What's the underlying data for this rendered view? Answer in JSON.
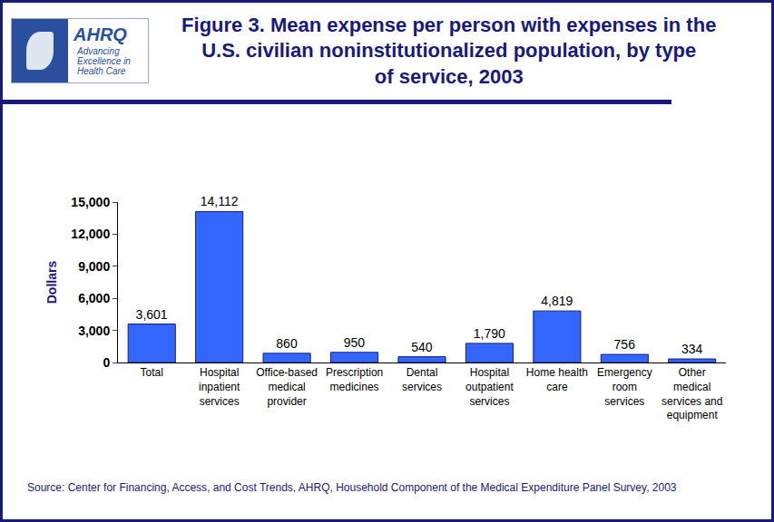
{
  "logo": {
    "name": "AHRQ",
    "tagline": "Advancing Excellence in Health Care"
  },
  "source": "Source: Center for Financing, Access, and Cost Trends, AHRQ, Household Component of the Medical Expenditure Panel Survey, 2003",
  "chart_data": {
    "type": "bar",
    "title": "Figure 3. Mean expense per person with expenses in the U.S. civilian noninstitutionalized population, by type of service, 2003",
    "y_label": "Dollars",
    "categories": [
      "Total",
      "Hospital inpatient services",
      "Office-based medical provider",
      "Prescription medicines",
      "Dental services",
      "Hospital outpatient services",
      "Home health care",
      "Emergency room services",
      "Other medical services and equipment"
    ],
    "values": [
      3601,
      14112,
      860,
      950,
      540,
      1790,
      4819,
      756,
      334
    ],
    "value_labels": [
      "3,601",
      "14,112",
      "860",
      "950",
      "540",
      "1,790",
      "4,819",
      "756",
      "334"
    ],
    "data_labels": true,
    "color": "#3366ff",
    "ylim": [
      0,
      15000
    ],
    "yticks": [
      0,
      {
        "value": 3000,
        "label": "3,000"
      },
      {
        "value": 6000,
        "label": "6,000"
      },
      {
        "value": 9000,
        "label": "9,000"
      },
      {
        "value": 12000,
        "label": "12,000"
      },
      {
        "value": 15000,
        "label": "15,000"
      }
    ],
    "grid": false
  }
}
